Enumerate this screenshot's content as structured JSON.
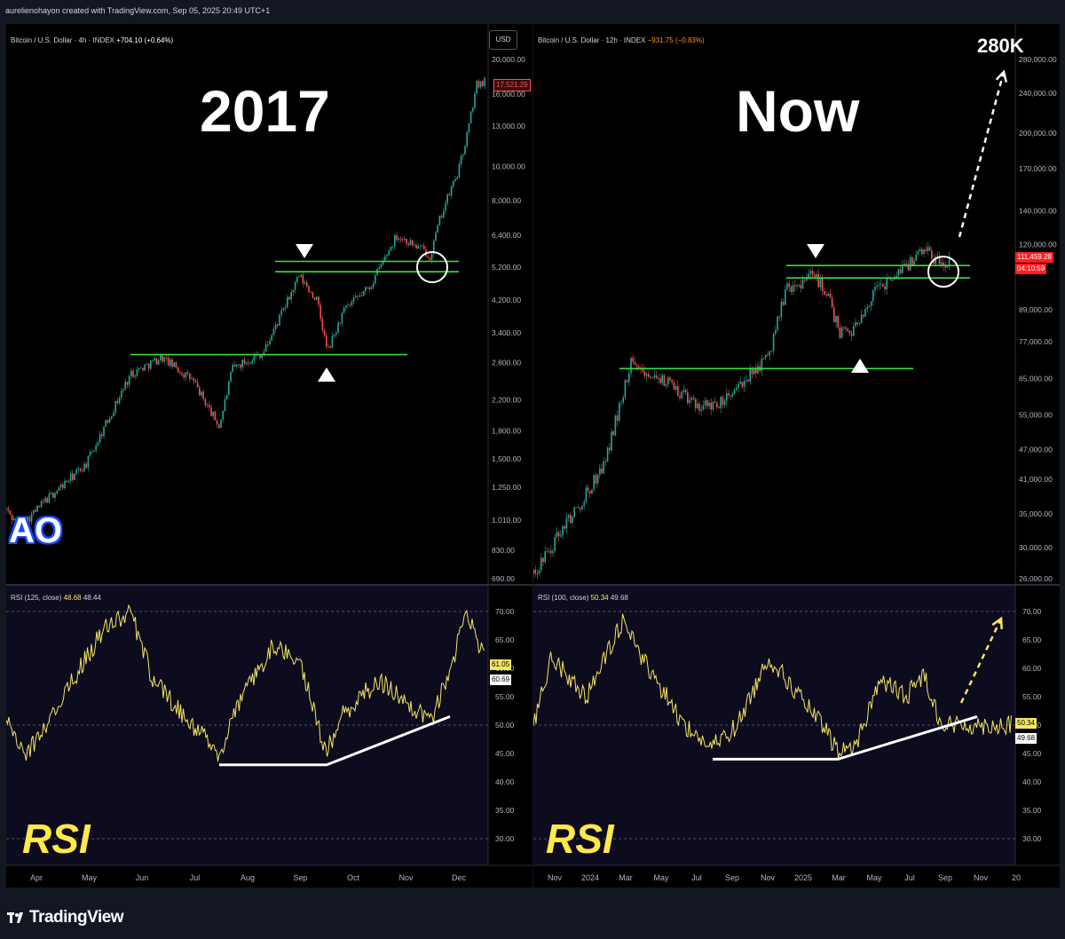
{
  "header": {
    "credit": "aurelienohayon created with TradingView.com, Sep 05, 2025 20:49 UTC+1"
  },
  "footer": {
    "brand": "TradingView"
  },
  "colors": {
    "background": "#000000",
    "support_line": "#3ddc3d",
    "rsi_line": "#f5e663",
    "trend_line": "#ffffff",
    "candle_up": "#26a69a",
    "candle_down": "#ef5350"
  },
  "panels": {
    "left": {
      "title": "2017",
      "legend": {
        "symbol": "Bitcoin / U.S. Dollar · 4h · INDEX",
        "change": "+704.10 (+0.64%)"
      },
      "currency_button": "USD",
      "price_labels": [
        "20,000.00",
        "16,000.00",
        "13,000.00",
        "10,000.00",
        "8,000.00",
        "6,400.00",
        "5,200.00",
        "4,200.00",
        "3,400.00",
        "2,800.00",
        "2,200.00",
        "1,800.00",
        "1,500.00",
        "1,250.00",
        "1,010.00",
        "830.00",
        "690.00"
      ],
      "last_price": "17,521.29",
      "watermark": "AO",
      "rsi": {
        "legend": "RSI (125, close)",
        "val1": "48.68",
        "val2": "48.44",
        "label": "RSI",
        "tags": [
          "61.05",
          "60.69"
        ]
      },
      "rsi_labels": [
        "70.00",
        "65.00",
        "60.00",
        "55.00",
        "50.00",
        "45.00",
        "40.00",
        "35.00",
        "30.00"
      ],
      "time_labels": [
        "Apr",
        "May",
        "Jun",
        "Jul",
        "Aug",
        "Sep",
        "Oct",
        "Nov",
        "Dec"
      ]
    },
    "right": {
      "title": "Now",
      "target": "280K",
      "legend": {
        "symbol": "Bitcoin / U.S. Dollar · 12h · INDEX",
        "change": "−931.75 (−0.83%)"
      },
      "price_labels": [
        "280,000.00",
        "240,000.00",
        "200,000.00",
        "170,000.00",
        "140,000.00",
        "120,000.00",
        "89,000.00",
        "77,000.00",
        "65,000.00",
        "55,000.00",
        "47,000.00",
        "41,000.00",
        "35,000.00",
        "30,000.00",
        "26,000.00"
      ],
      "last_price": "111,459.28",
      "countdown": "04:10:59",
      "rsi": {
        "legend": "RSI (100, close)",
        "val1": "50.34",
        "val2": "49.68",
        "label": "RSI",
        "tags": [
          "50.34",
          "49.68"
        ]
      },
      "rsi_labels": [
        "70.00",
        "65.00",
        "60.00",
        "55.00",
        "50.00",
        "45.00",
        "40.00",
        "35.00",
        "30.00"
      ],
      "time_labels": [
        "Nov",
        "2024",
        "Mar",
        "May",
        "Jul",
        "Sep",
        "Nov",
        "2025",
        "Mar",
        "May",
        "Jul",
        "Sep",
        "Nov",
        "20"
      ]
    }
  },
  "chart_data": [
    {
      "type": "line",
      "title": "2017",
      "ylabel": "Bitcoin / U.S. Dollar",
      "yscale": "log",
      "x": [
        "Apr",
        "May",
        "Jun",
        "Jul",
        "Aug",
        "Sep",
        "Oct",
        "Nov",
        "Dec"
      ],
      "series": [
        {
          "values": [
            1080,
            1500,
            2600,
            2300,
            4300,
            3100,
            5900,
            8000,
            17521
          ]
        }
      ],
      "support_levels": [
        2900,
        5000,
        5400
      ],
      "ylim": [
        690,
        20000
      ]
    },
    {
      "type": "line",
      "title": "Now",
      "ylabel": "Bitcoin / U.S. Dollar",
      "yscale": "log",
      "x": [
        "Nov",
        "2024",
        "Mar",
        "May",
        "Jul",
        "Sep",
        "Nov",
        "2025",
        "Mar",
        "May",
        "Jul",
        "Sep"
      ],
      "series": [
        {
          "values": [
            35000,
            42000,
            70000,
            62000,
            58000,
            60000,
            90000,
            102000,
            80000,
            105000,
            117000,
            111459
          ]
        }
      ],
      "support_levels": [
        68000,
        103000,
        109000
      ],
      "projection_target": 280000,
      "ylim": [
        26000,
        280000
      ]
    },
    {
      "type": "line",
      "title": "RSI (125, close)",
      "x": [
        "Apr",
        "May",
        "Jun",
        "Jul",
        "Aug",
        "Sep",
        "Oct",
        "Nov",
        "Dec"
      ],
      "series": [
        {
          "values": [
            52,
            60,
            64,
            52,
            60,
            48,
            56,
            58,
            61
          ]
        }
      ],
      "ylim": [
        30,
        70
      ]
    },
    {
      "type": "line",
      "title": "RSI (100, close)",
      "x": [
        "Nov",
        "2024",
        "Mar",
        "May",
        "Jul",
        "Sep",
        "Nov",
        "2025",
        "Mar",
        "May",
        "Jul",
        "Sep"
      ],
      "series": [
        {
          "values": [
            55,
            62,
            66,
            55,
            48,
            52,
            62,
            58,
            46,
            54,
            57,
            50
          ]
        }
      ],
      "ylim": [
        30,
        70
      ]
    }
  ]
}
